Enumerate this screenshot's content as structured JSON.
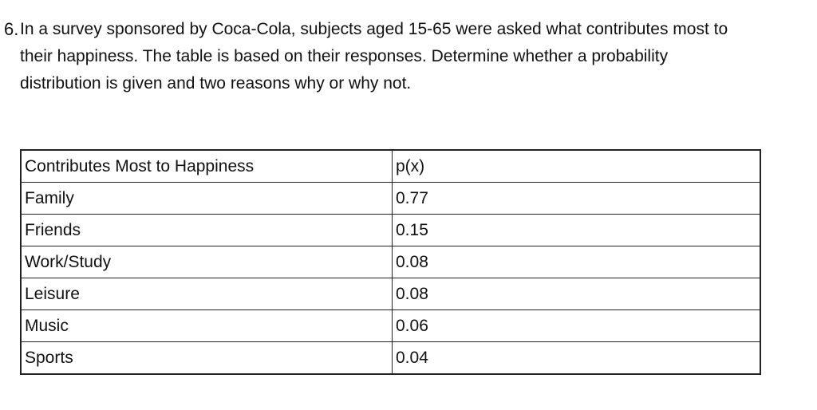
{
  "question": {
    "number": "6.",
    "lines": [
      "In a survey sponsored by Coca-Cola, subjects aged 15-65 were asked what contributes most to",
      "their happiness.  The table is based on their responses.  Determine whether a probability",
      "distribution is given and two reasons why or why not."
    ]
  },
  "table": {
    "headers": [
      "Contributes Most to Happiness",
      "p(x)"
    ],
    "rows": [
      [
        "Family",
        "0.77"
      ],
      [
        "Friends",
        "0.15"
      ],
      [
        "Work/Study",
        "0.08"
      ],
      [
        "Leisure",
        "0.08"
      ],
      [
        "Music",
        "0.06"
      ],
      [
        "Sports",
        "0.04"
      ]
    ]
  }
}
